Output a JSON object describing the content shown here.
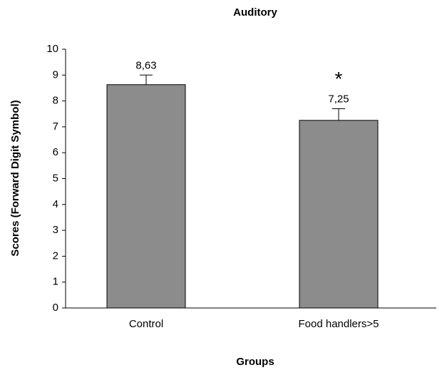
{
  "chart_data": {
    "type": "bar",
    "title": "Auditory",
    "categories": [
      "Control",
      "Food handlers>5"
    ],
    "values": [
      8.63,
      7.25
    ],
    "value_labels": [
      "8,63",
      "7,25"
    ],
    "errors": [
      0.37,
      0.45
    ],
    "color": "#8c8c8c",
    "annotations": [
      {
        "text": "*",
        "category": 1
      }
    ],
    "xlabel": "Groups",
    "ylabel": "Scores (Forward Digit Symbol)",
    "ylim": [
      0,
      10
    ],
    "yticks": [
      0,
      1,
      2,
      3,
      4,
      5,
      6,
      7,
      8,
      9,
      10
    ],
    "grid": false
  }
}
